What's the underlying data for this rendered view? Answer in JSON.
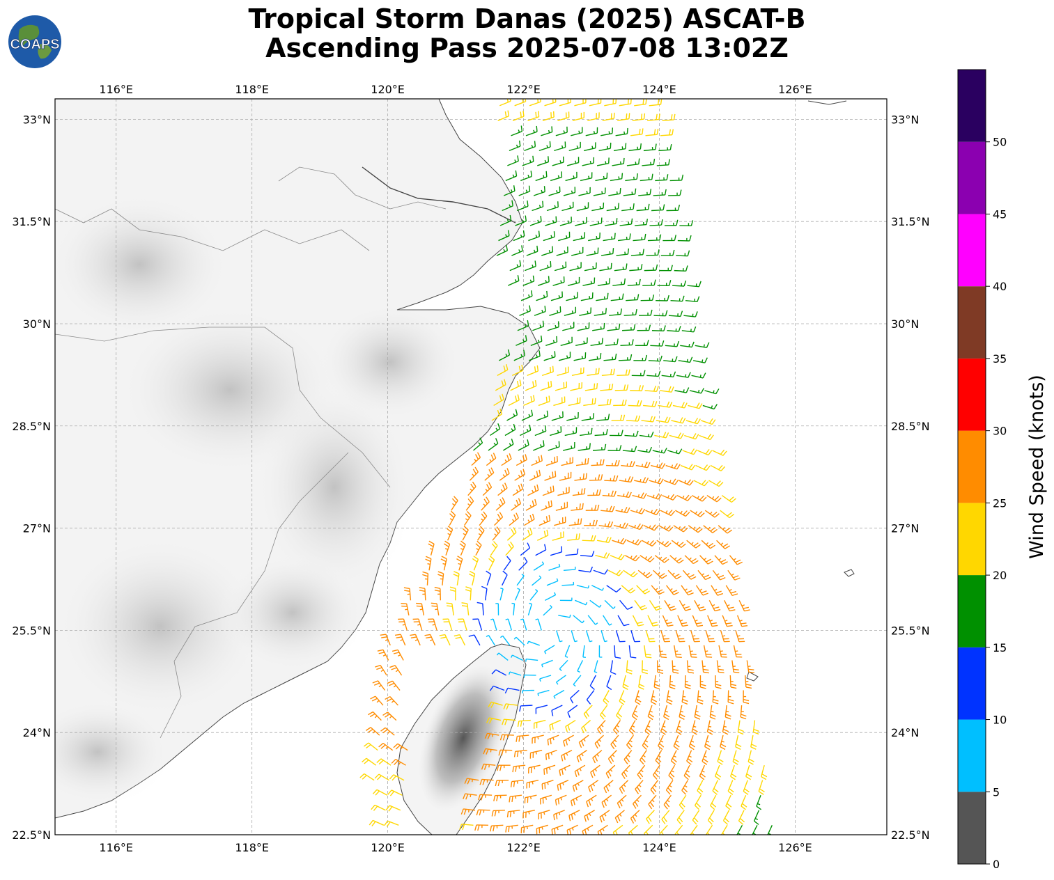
{
  "title": {
    "line1": "Tropical Storm Danas (2025) ASCAT-B",
    "line2": "Ascending Pass 2025-07-08 13:02Z"
  },
  "logo": {
    "text": "COAPS",
    "icon": "globe-icon"
  },
  "map": {
    "lon_range": [
      115.1,
      127.35
    ],
    "lat_range": [
      22.5,
      33.3
    ],
    "lon_ticks": [
      "116°E",
      "118°E",
      "120°E",
      "122°E",
      "124°E",
      "126°E"
    ],
    "lon_tick_values": [
      116,
      118,
      120,
      122,
      124,
      126
    ],
    "lat_ticks": [
      "22.5°N",
      "24°N",
      "25.5°N",
      "27°N",
      "28.5°N",
      "30°N",
      "31.5°N",
      "33°N"
    ],
    "lat_tick_values": [
      22.5,
      24,
      25.5,
      27,
      28.5,
      30,
      31.5,
      33
    ],
    "gridlines": true,
    "background": "grayscale terrain",
    "storm_center_approx": {
      "lon": 122.4,
      "lat": 25.5
    }
  },
  "colorbar": {
    "label": "Wind Speed (knots)",
    "ticks": [
      "0",
      "5",
      "10",
      "15",
      "20",
      "25",
      "30",
      "35",
      "40",
      "45",
      "50"
    ],
    "bins": [
      {
        "min": 0,
        "max": 5,
        "color": "#555555"
      },
      {
        "min": 5,
        "max": 10,
        "color": "#00bfff"
      },
      {
        "min": 10,
        "max": 15,
        "color": "#0033ff"
      },
      {
        "min": 15,
        "max": 20,
        "color": "#009000"
      },
      {
        "min": 20,
        "max": 25,
        "color": "#ffd700"
      },
      {
        "min": 25,
        "max": 30,
        "color": "#ff8c00"
      },
      {
        "min": 30,
        "max": 35,
        "color": "#ff0000"
      },
      {
        "min": 35,
        "max": 40,
        "color": "#7f3a25"
      },
      {
        "min": 40,
        "max": 45,
        "color": "#ff00ff"
      },
      {
        "min": 45,
        "max": 50,
        "color": "#8b00b0"
      },
      {
        "min": 50,
        "max": 55,
        "color": "#2a0060"
      }
    ]
  }
}
